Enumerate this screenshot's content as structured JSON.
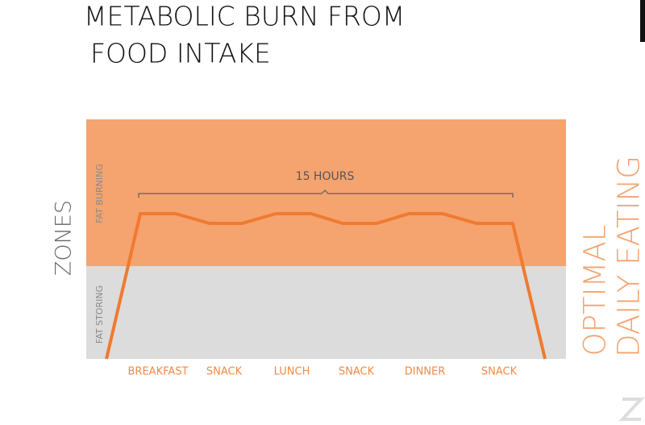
{
  "header": {
    "title_lines": [
      "METABOLIC BURN FROM",
      "FOOD INTAKE"
    ]
  },
  "diagram": {
    "axis_label": "ZONES",
    "zones": [
      "FAT BURNING",
      "FAT STORING"
    ],
    "span_label": "15 HOURS",
    "categories": [
      "BREAKFAST",
      "SNACK",
      "LUNCH",
      "SNACK",
      "DINNER",
      "SNACK"
    ],
    "side_label_lines": [
      "OPTIMAL",
      "DAILY EATING"
    ]
  }
}
